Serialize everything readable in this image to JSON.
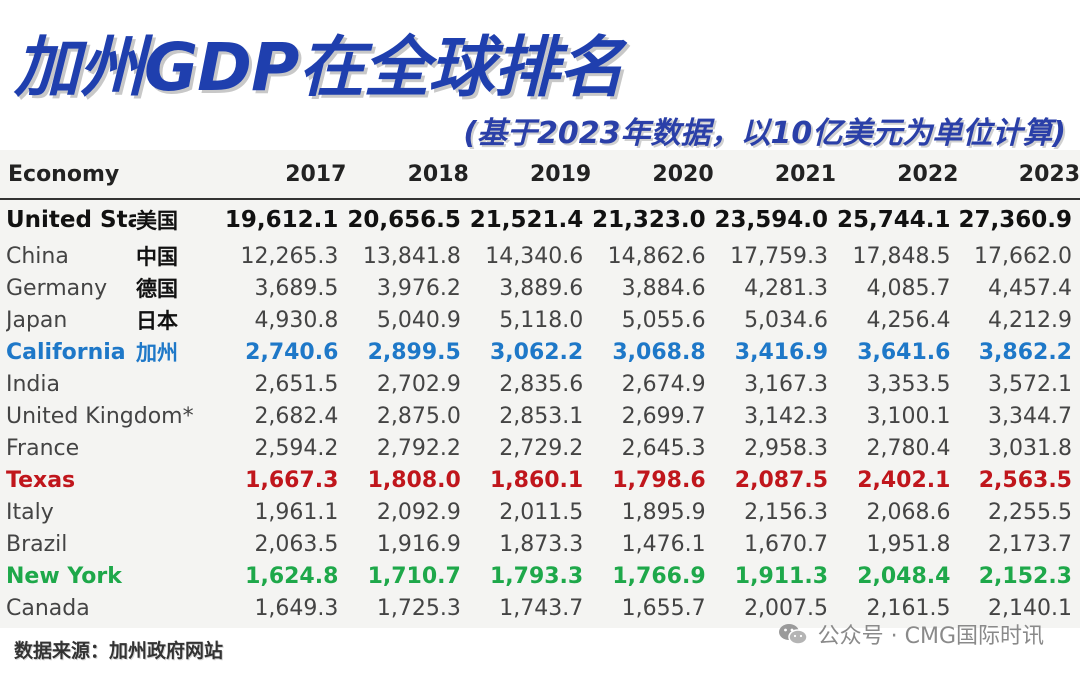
{
  "title": "加州GDP在全球排名",
  "subtitle": "(基于2023年数据，以10亿美元为单位计算)",
  "source": "数据来源：加州政府网站",
  "watermark": "公众号 · CMG国际时讯",
  "colors": {
    "title": "#1f3fae",
    "california": "#1e78c8",
    "texas": "#c0161c",
    "new_york": "#1ea84a"
  },
  "chart_data": {
    "type": "table",
    "columns": [
      "Economy",
      "2017",
      "2018",
      "2019",
      "2020",
      "2021",
      "2022",
      "2023"
    ],
    "rows": [
      {
        "economy": "United States",
        "cn": "美国",
        "style": "bold",
        "values": [
          "19,612.1",
          "20,656.5",
          "21,521.4",
          "21,323.0",
          "23,594.0",
          "25,744.1",
          "27,360.9"
        ]
      },
      {
        "economy": "China",
        "cn": "中国",
        "style": "normal",
        "values": [
          "12,265.3",
          "13,841.8",
          "14,340.6",
          "14,862.6",
          "17,759.3",
          "17,848.5",
          "17,662.0"
        ]
      },
      {
        "economy": "Germany",
        "cn": "德国",
        "style": "normal",
        "values": [
          "3,689.5",
          "3,976.2",
          "3,889.6",
          "3,884.6",
          "4,281.3",
          "4,085.7",
          "4,457.4"
        ]
      },
      {
        "economy": "Japan",
        "cn": "日本",
        "style": "normal",
        "values": [
          "4,930.8",
          "5,040.9",
          "5,118.0",
          "5,055.6",
          "5,034.6",
          "4,256.4",
          "4,212.9"
        ]
      },
      {
        "economy": "California",
        "cn": "加州",
        "style": "blue",
        "values": [
          "2,740.6",
          "2,899.5",
          "3,062.2",
          "3,068.8",
          "3,416.9",
          "3,641.6",
          "3,862.2"
        ]
      },
      {
        "economy": "India",
        "cn": "",
        "style": "normal",
        "values": [
          "2,651.5",
          "2,702.9",
          "2,835.6",
          "2,674.9",
          "3,167.3",
          "3,353.5",
          "3,572.1"
        ]
      },
      {
        "economy": "United Kingdom*",
        "cn": "",
        "style": "normal",
        "values": [
          "2,682.4",
          "2,875.0",
          "2,853.1",
          "2,699.7",
          "3,142.3",
          "3,100.1",
          "3,344.7"
        ]
      },
      {
        "economy": "France",
        "cn": "",
        "style": "normal",
        "values": [
          "2,594.2",
          "2,792.2",
          "2,729.2",
          "2,645.3",
          "2,958.3",
          "2,780.4",
          "3,031.8"
        ]
      },
      {
        "economy": "Texas",
        "cn": "",
        "style": "red",
        "values": [
          "1,667.3",
          "1,808.0",
          "1,860.1",
          "1,798.6",
          "2,087.5",
          "2,402.1",
          "2,563.5"
        ]
      },
      {
        "economy": "Italy",
        "cn": "",
        "style": "normal",
        "values": [
          "1,961.1",
          "2,092.9",
          "2,011.5",
          "1,895.9",
          "2,156.3",
          "2,068.6",
          "2,255.5"
        ]
      },
      {
        "economy": "Brazil",
        "cn": "",
        "style": "normal",
        "values": [
          "2,063.5",
          "1,916.9",
          "1,873.3",
          "1,476.1",
          "1,670.7",
          "1,951.8",
          "2,173.7"
        ]
      },
      {
        "economy": "New York",
        "cn": "",
        "style": "green",
        "values": [
          "1,624.8",
          "1,710.7",
          "1,793.3",
          "1,766.9",
          "1,911.3",
          "2,048.4",
          "2,152.3"
        ]
      },
      {
        "economy": "Canada",
        "cn": "",
        "style": "normal",
        "values": [
          "1,649.3",
          "1,725.3",
          "1,743.7",
          "1,655.7",
          "2,007.5",
          "2,161.5",
          "2,140.1"
        ]
      }
    ]
  }
}
